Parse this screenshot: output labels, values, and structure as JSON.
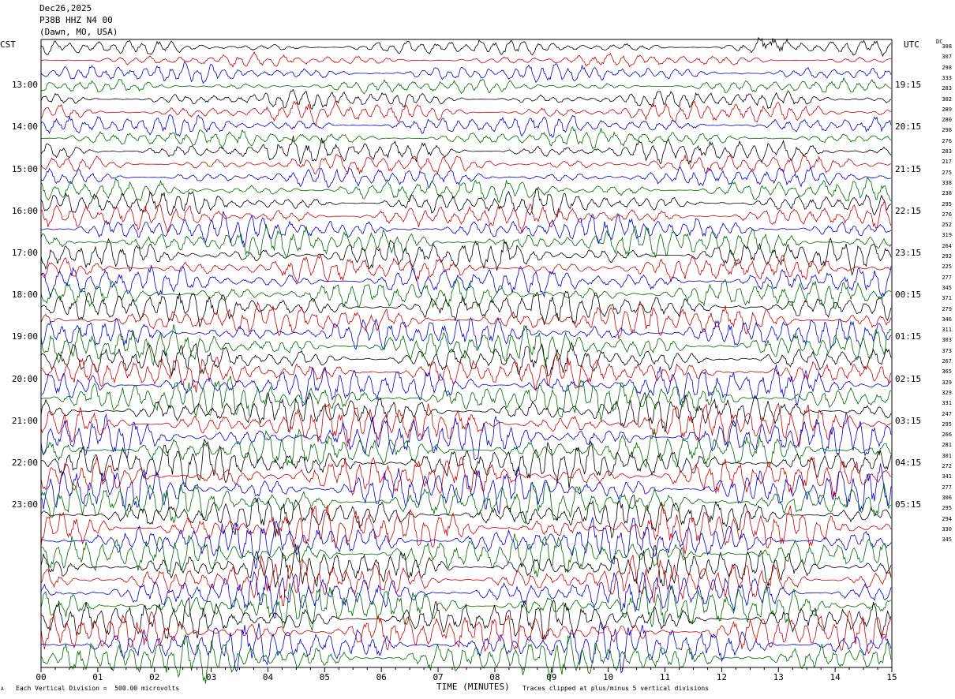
{
  "header": {
    "date": "Dec26,2025",
    "station": "P38B HHZ N4 00",
    "location": "(Dawn, MO, USA)"
  },
  "labels": {
    "left_tz": "CST",
    "right_tz": "UTC",
    "dc_header": "DC",
    "footer_scale": "Each Vertical Division =  500.00 microvolts",
    "footer_clip": "Traces clipped at plus/minus 5 vertical divisions",
    "corner_mark": "A"
  },
  "colors": {
    "traces": [
      "#000000",
      "#cc0000",
      "#0000cc",
      "#006600"
    ],
    "frame": "#000000",
    "background": "#ffffff"
  },
  "chart_data": {
    "type": "line",
    "title": "Dec26,2025 P38B HHZ N4 00 (Dawn, MO, USA)",
    "xlabel": "TIME (MINUTES)",
    "ylabel": "",
    "x_ticks": [
      "00",
      "01",
      "02",
      "03",
      "04",
      "05",
      "06",
      "07",
      "08",
      "09",
      "10",
      "11",
      "12",
      "13",
      "14",
      "15"
    ],
    "xlim": [
      0,
      15
    ],
    "left_hour_labels": [
      "13:00",
      "14:00",
      "15:00",
      "16:00",
      "17:00",
      "18:00",
      "19:00",
      "20:00",
      "21:00",
      "22:00",
      "23:00"
    ],
    "right_hour_labels": [
      "19:15",
      "20:15",
      "21:15",
      "22:15",
      "23:15",
      "00:15",
      "01:15",
      "02:15",
      "03:15",
      "04:15",
      "05:15"
    ],
    "trace_count": 48,
    "traces_per_hour": 4,
    "first_trace_time_cst": "12:00",
    "dc_offsets": [
      308,
      307,
      298,
      333,
      283,
      302,
      289,
      280,
      298,
      276,
      283,
      217,
      275,
      338,
      238,
      295,
      276,
      252,
      319,
      264,
      292,
      225,
      277,
      345,
      371,
      279,
      346,
      311,
      303,
      373,
      267,
      365,
      329,
      329,
      331,
      247,
      295,
      266,
      281,
      301,
      272,
      341,
      277,
      306,
      295,
      294,
      330,
      345
    ],
    "units": "microvolts",
    "vertical_division_microvolts": 500.0,
    "clip_divisions": 5
  }
}
